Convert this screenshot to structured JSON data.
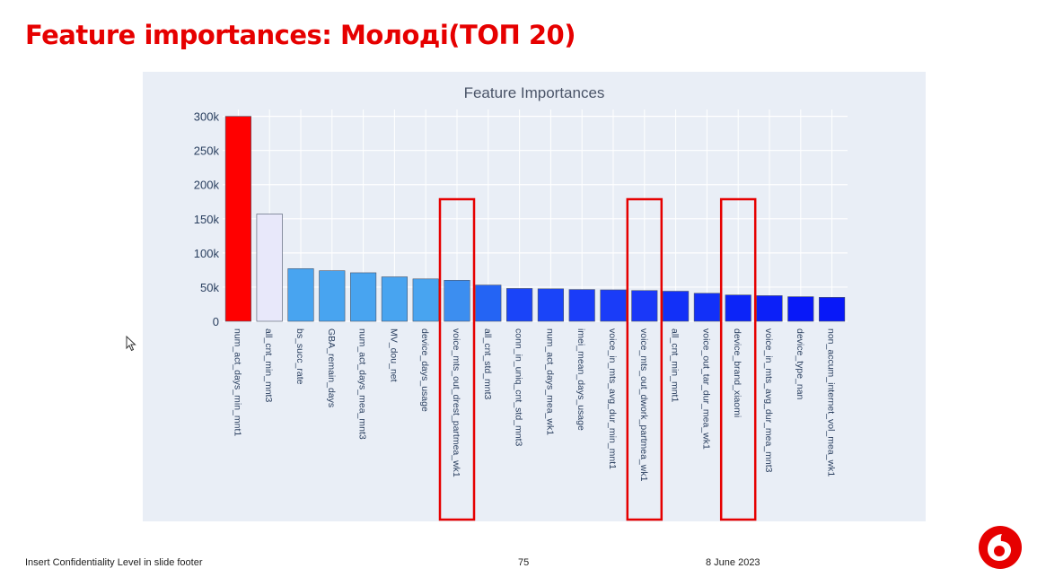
{
  "slide": {
    "title": "Feature importances: Молоді(ТОП 20)",
    "footer_left": "Insert Confidentiality Level in slide footer",
    "page_number": "75",
    "date": "8 June 2023",
    "logo_icon": "vodafone-logo-icon",
    "brand_color": "#e60000"
  },
  "chart_data": {
    "type": "bar",
    "title": "Feature Importances",
    "xlabel": "",
    "ylabel": "",
    "ylim": [
      0,
      310000
    ],
    "y_ticks": [
      0,
      50000,
      100000,
      150000,
      200000,
      250000,
      300000
    ],
    "y_tick_labels": [
      "0",
      "50k",
      "100k",
      "150k",
      "200k",
      "250k",
      "300k"
    ],
    "grid": true,
    "legend": "none",
    "background": "#e5ecf6",
    "categories": [
      "num_act_days_min_mnt1",
      "all_cnt_min_mnt3",
      "bs_succ_rate",
      "GBA_remain_days",
      "num_act_days_mea_mnt3",
      "MV_dou_net",
      "device_days_usage",
      "voice_mts_out_drest_partmea_wk1",
      "all_cnt_std_mnt3",
      "conn_in_uniq_cnt_std_mnt3",
      "num_act_days_mea_wk1",
      "imei_mean_days_usage",
      "voice_in_mts_avg_dur_min_mnt1",
      "voice_mts_out_dwork_partmea_wk1",
      "all_cnt_min_mnt1",
      "voice_out_tar_dur_mea_wk1",
      "device_brand_xiaomi",
      "voice_in_mts_avg_dur_mea_mnt3",
      "device_type_nan",
      "non_accum_internet_vol_mea_wk1"
    ],
    "values": [
      300000,
      157000,
      77000,
      74000,
      71000,
      65000,
      62000,
      60000,
      53000,
      48000,
      47500,
      46500,
      46000,
      45000,
      44000,
      41000,
      38500,
      37500,
      36000,
      35000
    ],
    "bar_colors": [
      "#ff0000",
      "#e8e8fa",
      "#48a4f0",
      "#48a4f0",
      "#48a4f0",
      "#48a4f0",
      "#48a4f0",
      "#3c8ef0",
      "#2464f4",
      "#1a44f8",
      "#1a44f8",
      "#1a3cf8",
      "#1a3cf8",
      "#1a38f8",
      "#1230f8",
      "#1230f8",
      "#0c24f8",
      "#0c20f8",
      "#0818f8",
      "#0818f8"
    ],
    "highlighted_categories": [
      "voice_mts_out_drest_partmea_wk1",
      "voice_mts_out_dwork_partmea_wk1",
      "device_brand_xiaomi"
    ],
    "highlight_color": "#e60000"
  }
}
